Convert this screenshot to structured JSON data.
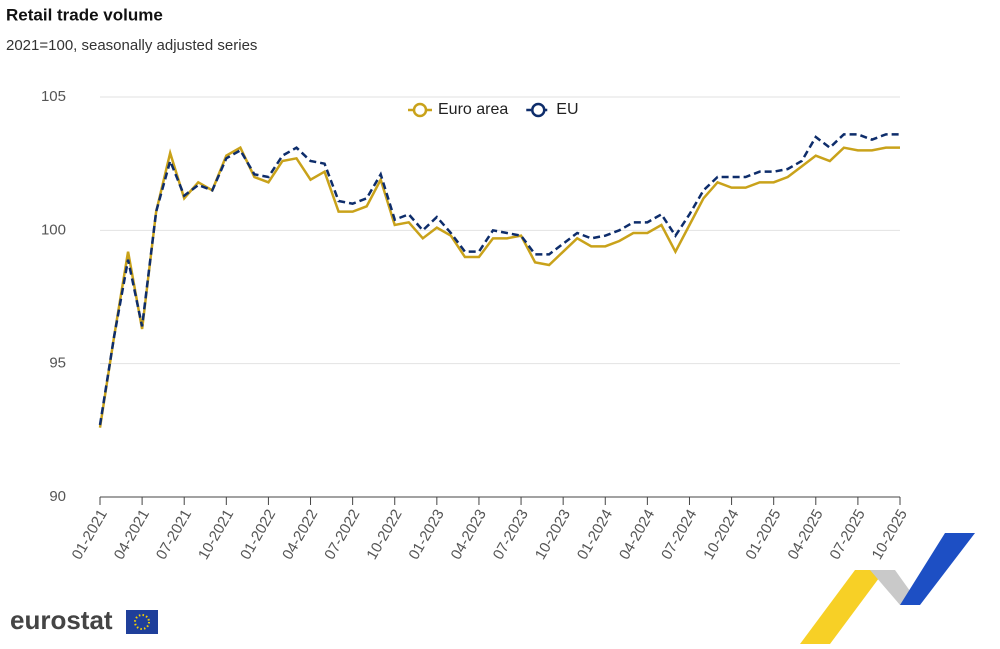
{
  "chart_data": {
    "type": "line",
    "title": "Retail trade volume",
    "subtitle": "2021=100, seasonally adjusted series",
    "brand": "eurostat",
    "categories": [
      "01-2021",
      null,
      null,
      "04-2021",
      null,
      null,
      "07-2021",
      null,
      null,
      "10-2021",
      null,
      null,
      "01-2022",
      null,
      null,
      "04-2022",
      null,
      null,
      "07-2022",
      null,
      null,
      "10-2022",
      null,
      null,
      "01-2023",
      null,
      null,
      "04-2023",
      null,
      null,
      "07-2023",
      null,
      null,
      "10-2023",
      null,
      null,
      "01-2024",
      null,
      null,
      "04-2024",
      null,
      null,
      "07-2024",
      null,
      null,
      "10-2024",
      null,
      null,
      "01-2025",
      null,
      null,
      "04-2025",
      null,
      null,
      "07-2025",
      null,
      null,
      "10-2025"
    ],
    "series": [
      {
        "name": "Euro area",
        "color": "#c9a21a",
        "dash": false,
        "values": [
          92.6,
          96.0,
          99.2,
          96.3,
          100.7,
          102.9,
          101.2,
          101.8,
          101.5,
          102.8,
          103.1,
          102.0,
          101.8,
          102.6,
          102.7,
          101.9,
          102.2,
          100.7,
          100.7,
          100.9,
          101.9,
          100.2,
          100.3,
          99.7,
          100.1,
          99.8,
          99.0,
          99.0,
          99.7,
          99.7,
          99.8,
          98.8,
          98.7,
          99.2,
          99.7,
          99.4,
          99.4,
          99.6,
          99.9,
          99.9,
          100.2,
          99.2,
          100.2,
          101.2,
          101.8,
          101.6,
          101.6,
          101.8,
          101.8,
          102.0,
          102.4,
          102.8,
          102.6,
          103.1,
          103.0,
          103.0,
          103.1,
          103.1
        ]
      },
      {
        "name": "EU",
        "color": "#0e2d6b",
        "dash": true,
        "values": [
          92.7,
          96.0,
          98.9,
          96.4,
          100.7,
          102.6,
          101.3,
          101.7,
          101.5,
          102.7,
          103.0,
          102.1,
          102.0,
          102.8,
          103.1,
          102.6,
          102.5,
          101.1,
          101.0,
          101.2,
          102.1,
          100.4,
          100.6,
          100.0,
          100.5,
          99.9,
          99.2,
          99.2,
          100.0,
          99.9,
          99.8,
          99.1,
          99.1,
          99.5,
          99.9,
          99.7,
          99.8,
          100.0,
          100.3,
          100.3,
          100.6,
          99.8,
          100.6,
          101.5,
          102.0,
          102.0,
          102.0,
          102.2,
          102.2,
          102.3,
          102.6,
          103.5,
          103.1,
          103.6,
          103.6,
          103.4,
          103.6,
          103.6
        ]
      }
    ],
    "ylim": [
      90,
      105
    ],
    "yticks": [
      90,
      95,
      100,
      105
    ],
    "grid": true,
    "legend": "top"
  }
}
